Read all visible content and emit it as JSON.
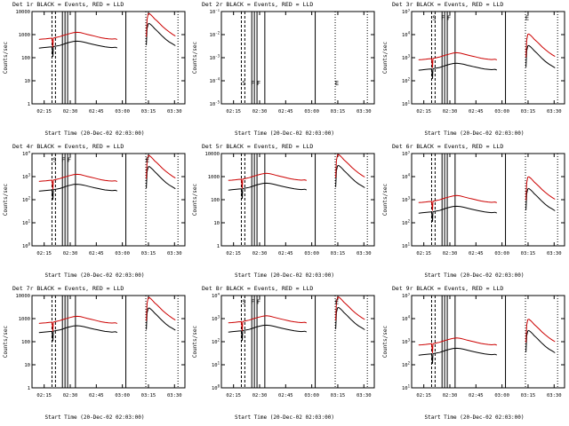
{
  "chart_data": {
    "type": "line",
    "layout": "3x3 grid of detector count-rate light curves, log y-axis",
    "legend": {
      "black_series": "Events",
      "red_series": "LLD",
      "red_color": "#cc0000",
      "black_color": "#000000"
    },
    "x_axis": {
      "domain_minutes": [
        8,
        96
      ],
      "tick_minutes": [
        15,
        30,
        45,
        60,
        75,
        90
      ],
      "tick_labels": [
        "02:15",
        "02:30",
        "02:45",
        "03:00",
        "03:15",
        "03:30"
      ]
    },
    "vlines": {
      "dashed_minutes": [
        19.5,
        21.5
      ],
      "solid_minutes": [
        25.5,
        27,
        28.5,
        33,
        62
      ],
      "dotted_minutes": [
        73.5,
        92
      ]
    },
    "base_segments": [
      {
        "x": [
          12,
          14,
          16,
          18,
          19.5,
          20,
          20.3,
          21,
          22,
          24,
          26,
          28,
          30,
          32,
          34,
          36,
          38,
          40,
          42,
          44,
          46,
          48,
          50,
          52,
          54,
          56,
          57
        ],
        "black": [
          260,
          270,
          280,
          290,
          295,
          110,
          300,
          310,
          320,
          340,
          380,
          430,
          470,
          510,
          520,
          500,
          470,
          430,
          395,
          365,
          340,
          315,
          295,
          285,
          275,
          285,
          265
        ],
        "red": [
          620,
          640,
          660,
          690,
          700,
          280,
          710,
          730,
          760,
          820,
          920,
          1020,
          1120,
          1220,
          1260,
          1210,
          1110,
          1010,
          930,
          860,
          790,
          730,
          690,
          660,
          640,
          660,
          615
        ]
      },
      {
        "x": [
          73.8,
          74.2,
          74.8,
          75.5,
          76.5,
          77.5,
          78.5,
          80,
          81.5,
          83,
          85,
          87,
          89,
          90.5
        ],
        "black": [
          350,
          1800,
          2900,
          3050,
          2650,
          2250,
          1850,
          1450,
          1100,
          850,
          620,
          480,
          390,
          330
        ],
        "red": [
          800,
          4500,
          7800,
          8200,
          7100,
          6000,
          4900,
          3900,
          3000,
          2300,
          1700,
          1300,
          1020,
          870
        ]
      }
    ],
    "panels": [
      {
        "title": "Det 1r BLACK = Events, RED = LLD",
        "ylabel": "Counts/sec",
        "xlabel": "Start Time (20-Dec-02 02:03:00)",
        "ylog": [
          0,
          4
        ],
        "yticks": [
          "1",
          "10",
          "100",
          "1000",
          "10000"
        ],
        "scale_black": 1.0,
        "scale_red": 1.0,
        "has_data": true,
        "letters": []
      },
      {
        "title": "Det 2r BLACK = Events, RED = LLD",
        "ylabel": "Counts/sec",
        "xlabel": "Start Time (20-Dec-02 02:03:00)",
        "ylog": [
          -5,
          -1
        ],
        "yticks": [
          "10^-5",
          "10^-4",
          "10^-3",
          "10^-2",
          "10^-1"
        ],
        "scale_black": 0,
        "scale_red": 0,
        "has_data": false,
        "letters": [
          {
            "ch": "S",
            "t": 21,
            "f": 0.22
          },
          {
            "ch": "F",
            "t": 26,
            "f": 0.22
          },
          {
            "ch": "F",
            "t": 29.5,
            "f": 0.22
          },
          {
            "ch": "E",
            "t": 74.5,
            "f": 0.22
          }
        ]
      },
      {
        "title": "Det 3r BLACK = Events, RED = LLD",
        "ylabel": "Counts/sec",
        "xlabel": "Start Time (20-Dec-02 02:03:00)",
        "ylog": [
          1,
          5
        ],
        "yticks": [
          "10^1",
          "10^2",
          "10^3",
          "10^4",
          "10^5"
        ],
        "scale_black": 1.1,
        "scale_red": 1.3,
        "has_data": true,
        "letters": [
          {
            "ch": "S",
            "t": 21,
            "f": 0.93
          },
          {
            "ch": "F",
            "t": 26,
            "f": 0.93
          },
          {
            "ch": "F",
            "t": 29.5,
            "f": 0.93
          },
          {
            "ch": "E",
            "t": 74.5,
            "f": 0.93
          }
        ]
      },
      {
        "title": "Det 4r BLACK = Events, RED = LLD",
        "ylabel": "Counts/sec",
        "xlabel": "Start Time (20-Dec-02 02:03:00)",
        "ylog": [
          0,
          4
        ],
        "yticks": [
          "10^0",
          "10^1",
          "10^2",
          "10^3",
          "10^4"
        ],
        "scale_black": 0.9,
        "scale_red": 1.0,
        "has_data": true,
        "letters": [
          {
            "ch": "S",
            "t": 21,
            "f": 0.93
          },
          {
            "ch": "F",
            "t": 26,
            "f": 0.93
          },
          {
            "ch": "F",
            "t": 29.5,
            "f": 0.93
          },
          {
            "ch": "E",
            "t": 74.5,
            "f": 0.93
          }
        ]
      },
      {
        "title": "Det 5r BLACK = Events, RED = LLD",
        "ylabel": "Counts/sec",
        "xlabel": "Start Time (20-Dec-02 02:03:00)",
        "ylog": [
          0,
          4
        ],
        "yticks": [
          "1",
          "10",
          "100",
          "1000",
          "10000"
        ],
        "scale_black": 1.0,
        "scale_red": 1.1,
        "has_data": true,
        "letters": []
      },
      {
        "title": "Det 6r BLACK = Events, RED = LLD",
        "ylabel": "Counts/sec",
        "xlabel": "Start Time (20-Dec-02 02:03:00)",
        "ylog": [
          1,
          5
        ],
        "yticks": [
          "10^1",
          "10^2",
          "10^3",
          "10^4",
          "10^5"
        ],
        "scale_black": 1.0,
        "scale_red": 1.2,
        "has_data": true,
        "letters": []
      },
      {
        "title": "Det 7r BLACK = Events, RED = LLD",
        "ylabel": "Counts/sec",
        "xlabel": "Start Time (20-Dec-02 02:03:00)",
        "ylog": [
          0,
          4
        ],
        "yticks": [
          "1",
          "10",
          "100",
          "1000",
          "10000"
        ],
        "scale_black": 0.95,
        "scale_red": 1.0,
        "has_data": true,
        "letters": []
      },
      {
        "title": "Det 8r BLACK = Events, RED = LLD",
        "ylabel": "Counts/sec",
        "xlabel": "Start Time (20-Dec-02 02:03:00)",
        "ylog": [
          0,
          4
        ],
        "yticks": [
          "10^0",
          "10^1",
          "10^2",
          "10^3",
          "10^4"
        ],
        "scale_black": 1.0,
        "scale_red": 1.05,
        "has_data": true,
        "letters": [
          {
            "ch": "S",
            "t": 21,
            "f": 0.93
          },
          {
            "ch": "F",
            "t": 26,
            "f": 0.93
          },
          {
            "ch": "F",
            "t": 29.5,
            "f": 0.93
          },
          {
            "ch": "E",
            "t": 74.5,
            "f": 0.93
          }
        ]
      },
      {
        "title": "Det 9r BLACK = Events, RED = LLD",
        "ylabel": "Counts/sec",
        "xlabel": "Start Time (20-Dec-02 02:03:00)",
        "ylog": [
          1,
          5
        ],
        "yticks": [
          "10^1",
          "10^2",
          "10^3",
          "10^4",
          "10^5"
        ],
        "scale_black": 1.0,
        "scale_red": 1.15,
        "has_data": true,
        "letters": []
      }
    ]
  }
}
